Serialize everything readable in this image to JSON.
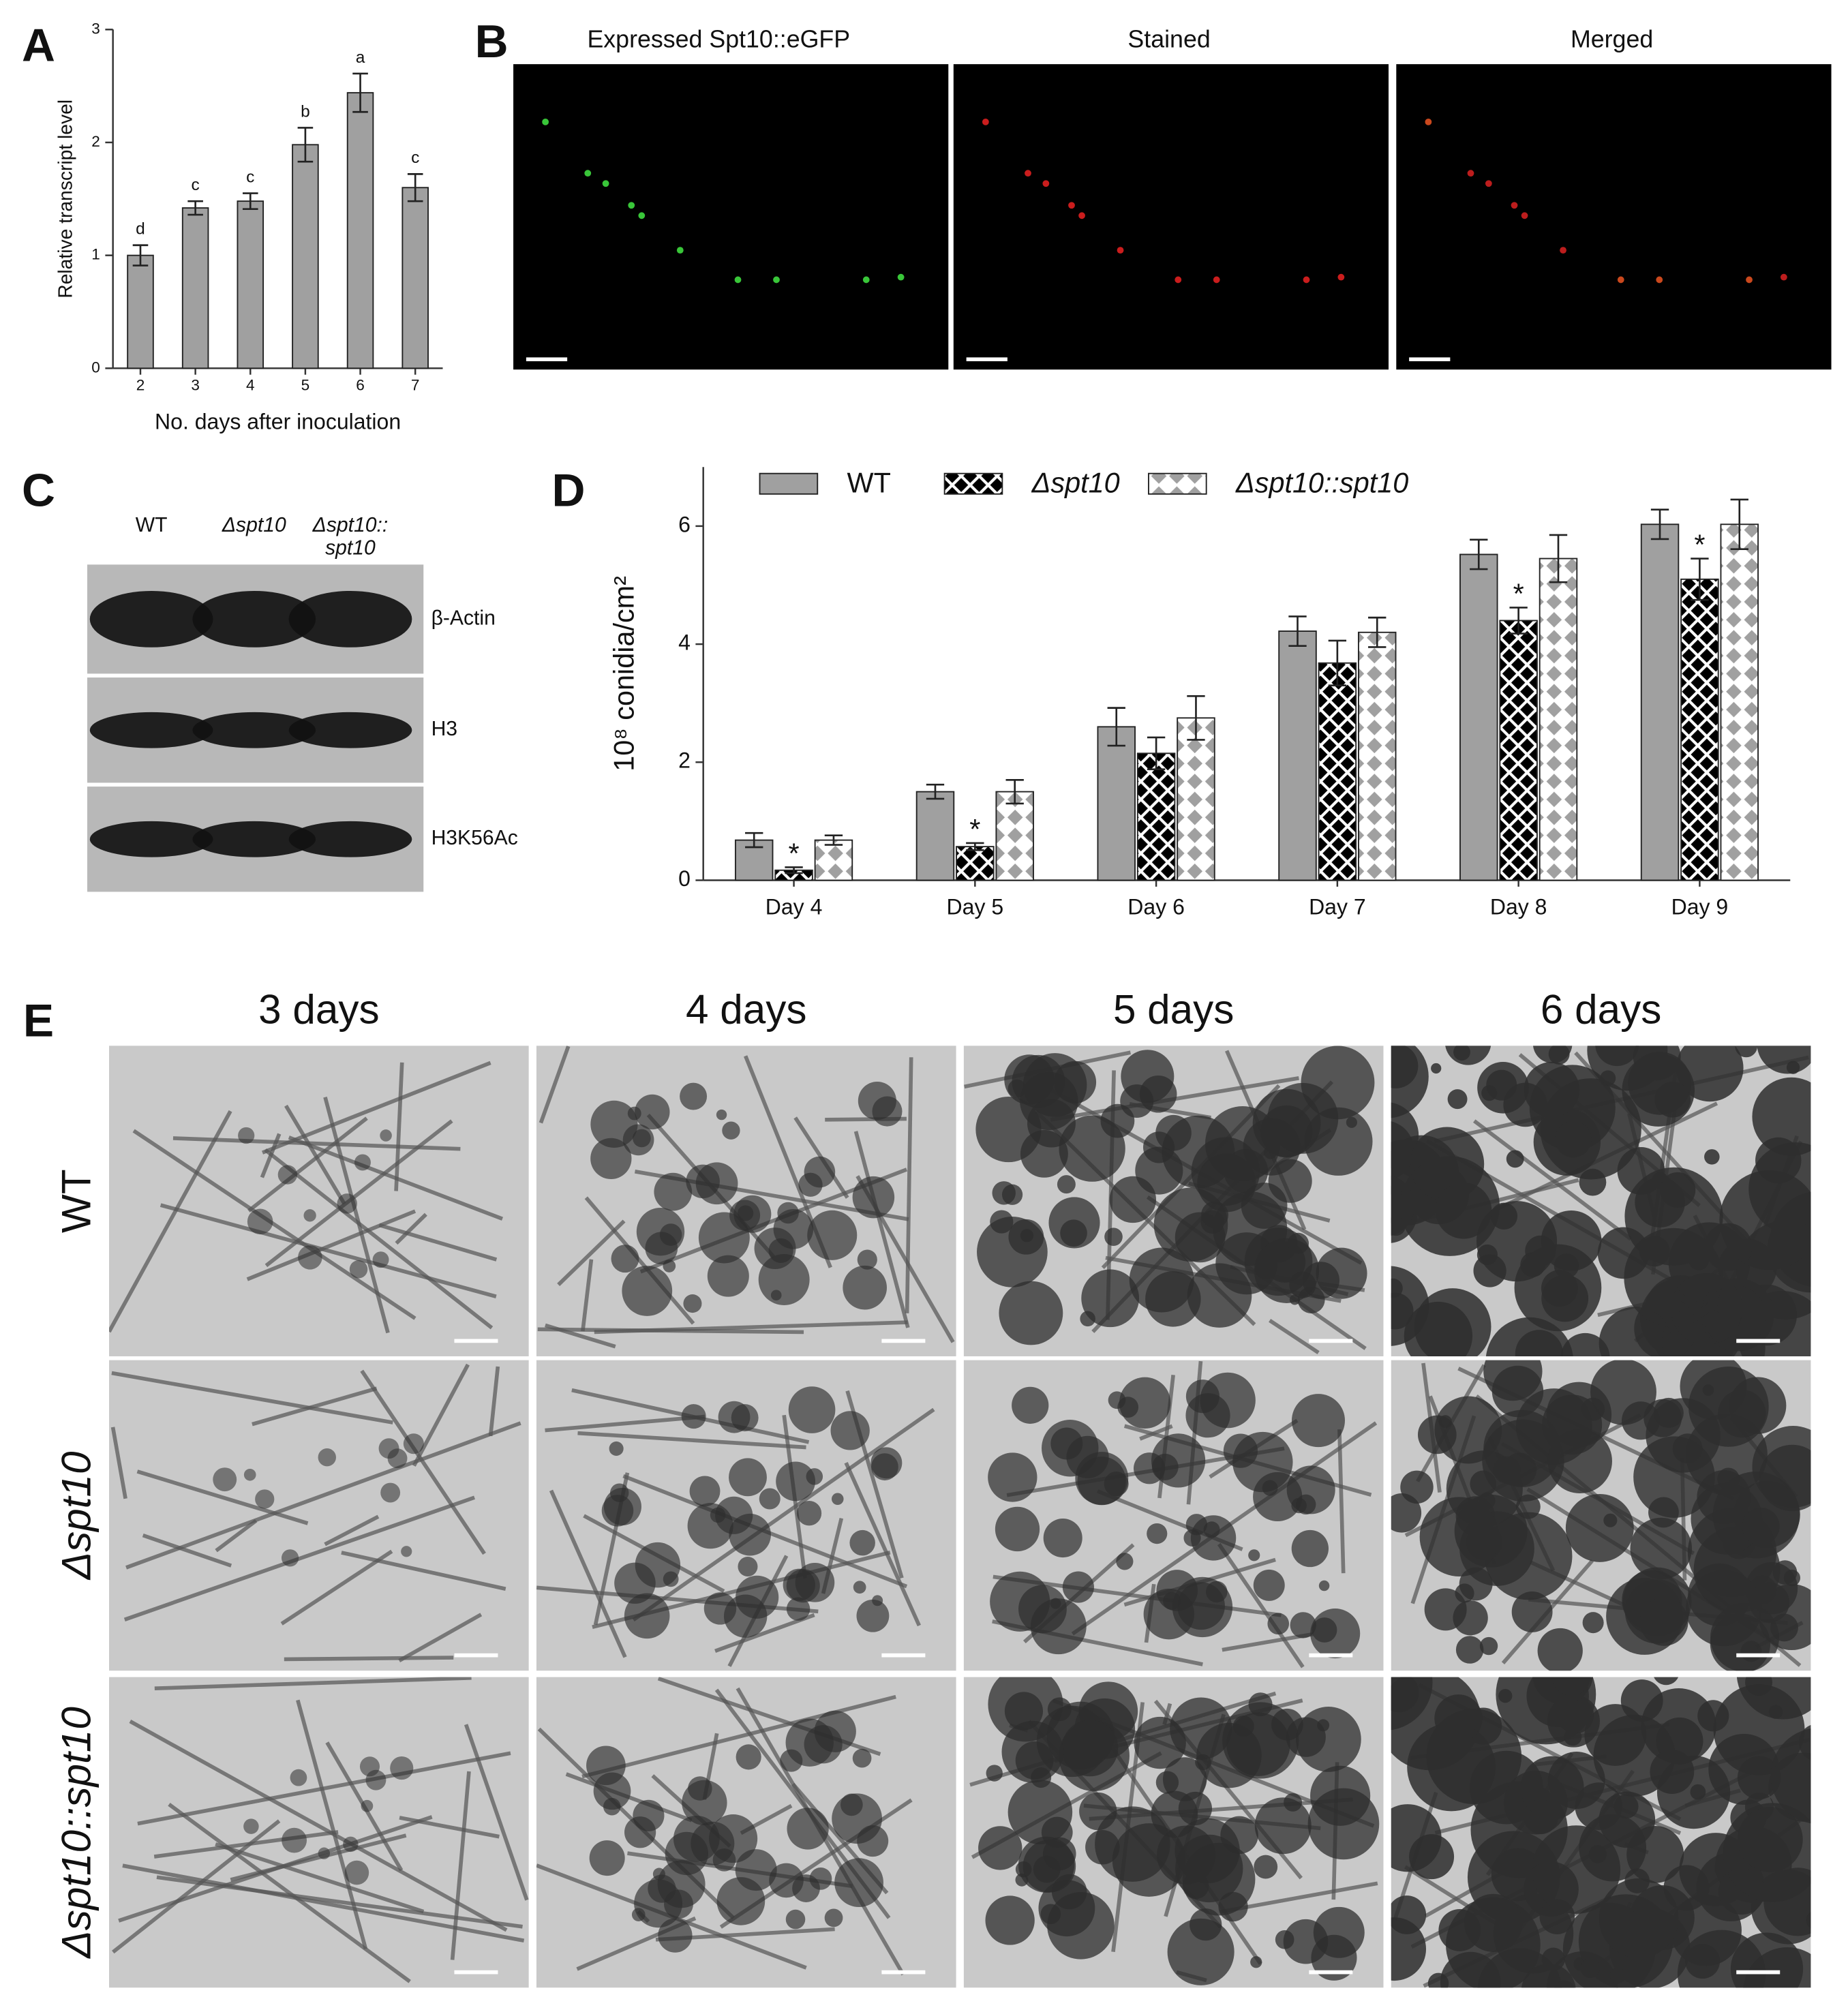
{
  "panel_labels": [
    "A",
    "B",
    "C",
    "D",
    "E"
  ],
  "chart_data": [
    {
      "type": "bar",
      "categories": [
        "2",
        "3",
        "4",
        "5",
        "6",
        "7"
      ],
      "values": [
        1.0,
        1.42,
        1.48,
        1.98,
        2.44,
        1.6
      ],
      "errors": [
        0.09,
        0.06,
        0.07,
        0.15,
        0.17,
        0.12
      ],
      "annotations": [
        "d",
        "c",
        "c",
        "b",
        "a",
        "c"
      ],
      "color": "#a0a0a0",
      "ylim": [
        0,
        3
      ],
      "yticks": [
        0,
        1,
        2,
        3
      ],
      "xlabel": "No. days after inoculation",
      "ylabel": "Relative transcript level"
    },
    {
      "type": "bar",
      "categories": [
        "Day 4",
        "Day 5",
        "Day 6",
        "Day 7",
        "Day 8",
        "Day 9"
      ],
      "series": [
        {
          "name": "WT",
          "color": "#a0a0a0",
          "pattern": "solid",
          "values": [
            0.68,
            1.5,
            2.6,
            4.22,
            5.52,
            6.03
          ],
          "errors": [
            0.12,
            0.12,
            0.32,
            0.25,
            0.25,
            0.25
          ]
        },
        {
          "name": "Δspt10",
          "color": "#000000",
          "pattern": "crosshatch",
          "values": [
            0.17,
            0.57,
            2.15,
            3.68,
            4.4,
            5.1
          ],
          "errors": [
            0.05,
            0.06,
            0.27,
            0.38,
            0.22,
            0.35
          ]
        },
        {
          "name": "Δspt10::spt10",
          "color": "#a0a0a0",
          "pattern": "diamonds",
          "values": [
            0.68,
            1.5,
            2.75,
            4.2,
            5.45,
            6.03
          ],
          "errors": [
            0.08,
            0.2,
            0.37,
            0.25,
            0.4,
            0.42
          ]
        }
      ],
      "annotations": [
        {
          "category": 0,
          "series": 1,
          "text": "*"
        },
        {
          "category": 1,
          "series": 1,
          "text": "*"
        },
        {
          "category": 4,
          "series": 1,
          "text": "*"
        },
        {
          "category": 5,
          "series": 1,
          "text": "*"
        }
      ],
      "ylim": [
        0,
        7
      ],
      "yticks": [
        0,
        2,
        4,
        6
      ],
      "ylabel": "10⁸ conidia/cm²",
      "legend": "top"
    }
  ],
  "panel_b": {
    "titles": [
      "Expressed  Spt10::eGFP",
      "Stained",
      "Merged"
    ]
  },
  "panel_c": {
    "lanes": [
      [
        "WT"
      ],
      [
        "Δspt10"
      ],
      [
        "Δspt10::",
        "spt10"
      ]
    ],
    "bands": [
      "β-Actin",
      "H3",
      "H3K56Ac"
    ]
  },
  "panel_e": {
    "columns": [
      "3 days",
      "4 days",
      "5 days",
      "6 days"
    ],
    "rows": [
      "WT",
      "Δspt10",
      "Δspt10::spt10"
    ]
  }
}
